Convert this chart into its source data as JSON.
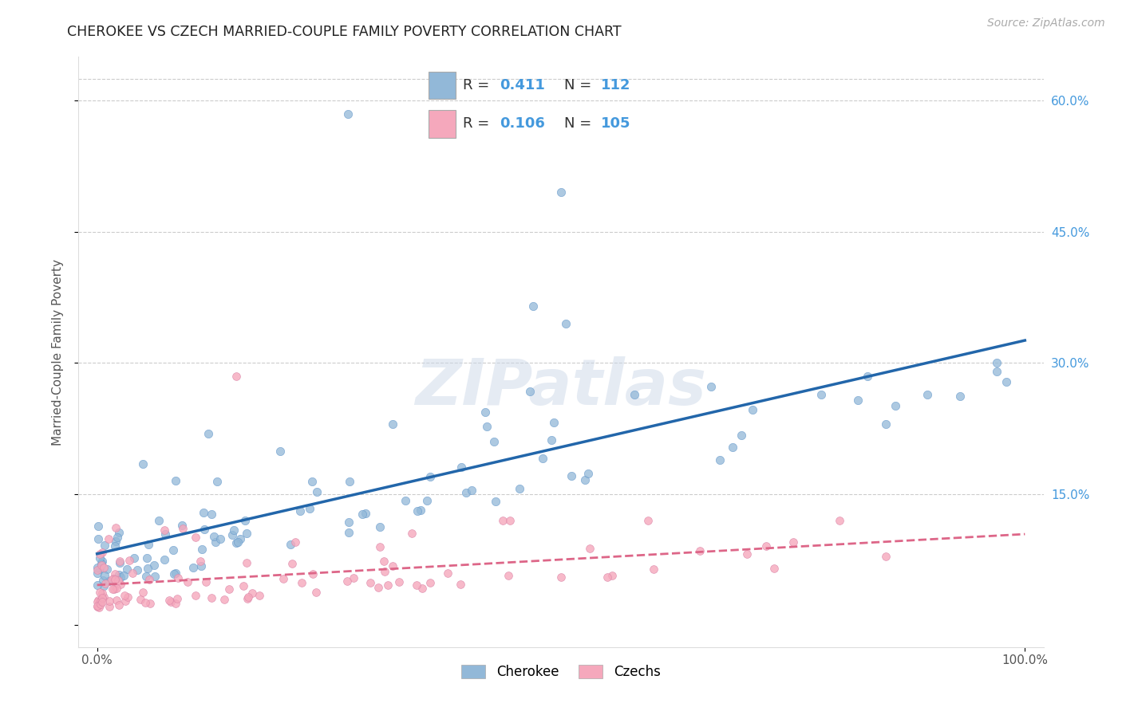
{
  "title": "CHEROKEE VS CZECH MARRIED-COUPLE FAMILY POVERTY CORRELATION CHART",
  "source": "Source: ZipAtlas.com",
  "ylabel": "Married-Couple Family Poverty",
  "xlabel": "",
  "watermark": "ZIPatlas",
  "xlim": [
    -0.02,
    1.02
  ],
  "ylim": [
    -0.025,
    0.65
  ],
  "xticks": [
    0.0,
    1.0
  ],
  "xtick_labels": [
    "0.0%",
    "100.0%"
  ],
  "yticks": [
    0.0,
    0.15,
    0.3,
    0.45,
    0.6
  ],
  "ytick_labels": [
    "",
    "",
    "",
    "",
    ""
  ],
  "right_ytick_labels": [
    "15.0%",
    "30.0%",
    "45.0%",
    "60.0%"
  ],
  "right_ytick_vals": [
    0.15,
    0.3,
    0.45,
    0.6
  ],
  "cherokee_R": 0.411,
  "cherokee_N": 112,
  "czech_R": 0.106,
  "czech_N": 105,
  "cherokee_color": "#92b8d8",
  "czech_color": "#f5a8bc",
  "cherokee_line_color": "#2266aa",
  "czech_line_color": "#dd6688",
  "legend_labels": [
    "Cherokee",
    "Czechs"
  ],
  "background_color": "#ffffff",
  "grid_color": "#cccccc",
  "title_color": "#222222",
  "axis_label_color": "#555555",
  "right_ytick_color": "#4499dd",
  "stats_cherokee_R": "0.411",
  "stats_cherokee_N": "112",
  "stats_czech_R": "0.106",
  "stats_czech_N": "105"
}
